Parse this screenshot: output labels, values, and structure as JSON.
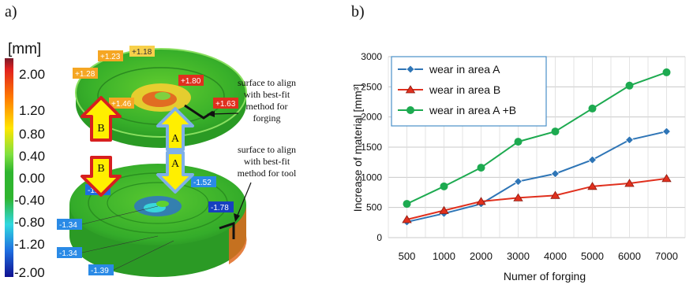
{
  "panels": {
    "a": "a)",
    "b": "b)"
  },
  "scale": {
    "unit": "[mm]",
    "ticks": [
      "2.00",
      "1.20",
      "0.80",
      "0.40",
      "0.00",
      "-0.40",
      "-0.80",
      "-1.20",
      "-2.00"
    ]
  },
  "callouts": {
    "upper": [
      "+1.23",
      "+1.18",
      "+1.28",
      "+1.80",
      "+1.46",
      "+1.63"
    ],
    "lower": [
      "-1.40",
      "-1.52",
      "-1.78",
      "-1.34",
      "-1.34",
      "-1.39"
    ]
  },
  "arrow_labels": {
    "b_upper": "B",
    "b_lower": "B",
    "a_upper": "A",
    "a_lower": "A"
  },
  "notes": {
    "forging": [
      "surface to align",
      "with best-fit",
      "method for",
      "forging"
    ],
    "tool": [
      "surface to align",
      "with best-fit",
      "method for tool"
    ]
  },
  "colors": {
    "green": "#2fb52f",
    "series_a": "#2e75b6",
    "series_b": "#e0301e",
    "series_ab": "#1daa50"
  },
  "chart_data": {
    "type": "line",
    "categories": [
      "500",
      "1000",
      "2000",
      "3000",
      "4000",
      "5000",
      "6000",
      "7000"
    ],
    "xlabel": "Numer of forging",
    "ylabel": "Increase of material [mm³]",
    "ylim": [
      0,
      3000
    ],
    "yticks": [
      0,
      500,
      1000,
      1500,
      2000,
      2500,
      3000
    ],
    "grid": true,
    "legend": "top-left",
    "series": [
      {
        "name": "wear in area A",
        "marker": "diamond",
        "color": "#2e75b6",
        "values": [
          260,
          400,
          560,
          930,
          1060,
          1290,
          1620,
          1760
        ]
      },
      {
        "name": "wear in area B",
        "marker": "triangle",
        "color": "#e0301e",
        "values": [
          300,
          450,
          600,
          660,
          700,
          850,
          900,
          980
        ]
      },
      {
        "name": "wear in area A +B",
        "marker": "circle",
        "color": "#1daa50",
        "values": [
          560,
          850,
          1160,
          1590,
          1760,
          2140,
          2520,
          2740
        ]
      }
    ]
  }
}
